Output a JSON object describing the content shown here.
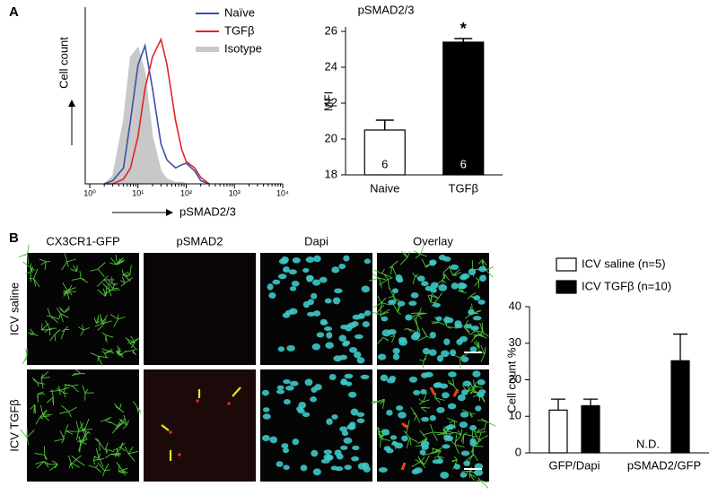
{
  "panels": [
    "A",
    "B"
  ],
  "micrographs": {
    "columns": [
      "CX3CR1-GFP",
      "pSMAD2",
      "Dapi",
      "Overlay"
    ],
    "rows": [
      "ICV saline",
      "ICV TGFβ"
    ]
  },
  "chart_data": [
    {
      "type": "histogram-lines",
      "xlabel": "pSMAD2/3",
      "ylabel": "Cell count",
      "log_x": true,
      "xlim": [
        1,
        10000
      ],
      "xticks": [
        {
          "value": 1,
          "label": "10⁰"
        },
        {
          "value": 10,
          "label": "10¹"
        },
        {
          "value": 100,
          "label": "10²"
        },
        {
          "value": 1000,
          "label": "10³"
        },
        {
          "value": 10000,
          "label": "10⁴"
        }
      ],
      "ylim": [
        0,
        100
      ],
      "legend": "upper right",
      "x": [
        2,
        3,
        5,
        7,
        10,
        14,
        20,
        30,
        40,
        60,
        80,
        100,
        150,
        200,
        300
      ],
      "series": [
        {
          "name": "Naïve",
          "color": "#3b4fa8",
          "values": [
            0,
            2,
            10,
            40,
            75,
            87,
            60,
            25,
            15,
            10,
            12,
            13,
            8,
            2,
            0
          ]
        },
        {
          "name": "TGFβ",
          "color": "#e0252b",
          "values": [
            0,
            0,
            3,
            10,
            30,
            60,
            80,
            91,
            75,
            40,
            22,
            14,
            10,
            4,
            0
          ]
        },
        {
          "name": "Isotype",
          "color": "#c8c8c8",
          "fill": true,
          "values": [
            0,
            5,
            40,
            80,
            86,
            70,
            30,
            8,
            3,
            1,
            1,
            0,
            0,
            0,
            0
          ]
        }
      ]
    },
    {
      "type": "bar",
      "title": "pSMAD2/3",
      "ylabel": "MFI",
      "categories": [
        "Naive",
        "TGFβ"
      ],
      "values": [
        20.5,
        25.4
      ],
      "errors": [
        0.55,
        0.2
      ],
      "colors": [
        "#ffffff",
        "#000000"
      ],
      "bar_labels": [
        "6",
        "6"
      ],
      "ylim": [
        18,
        26
      ],
      "yticks": [
        18,
        20,
        22,
        24,
        26
      ],
      "annotations": [
        {
          "text": "*",
          "category": "TGFβ"
        }
      ]
    },
    {
      "type": "grouped-bar",
      "ylabel": "Cell count %",
      "categories": [
        "GFP/Dapi",
        "pSMAD2/GFP"
      ],
      "series": [
        {
          "name": "ICV saline (n=5)",
          "color": "#ffffff",
          "values": [
            11.7,
            null
          ],
          "errors": [
            3,
            null
          ]
        },
        {
          "name": "ICV TGFβ (n=10)",
          "color": "#000000",
          "values": [
            12.9,
            25.2
          ],
          "errors": [
            1.8,
            7.3
          ]
        }
      ],
      "ylim": [
        0,
        40
      ],
      "yticks": [
        0,
        10,
        20,
        30,
        40
      ],
      "legend": "top",
      "annotations": [
        {
          "text": "N.D.",
          "category": "pSMAD2/GFP",
          "series": 0
        }
      ]
    }
  ]
}
